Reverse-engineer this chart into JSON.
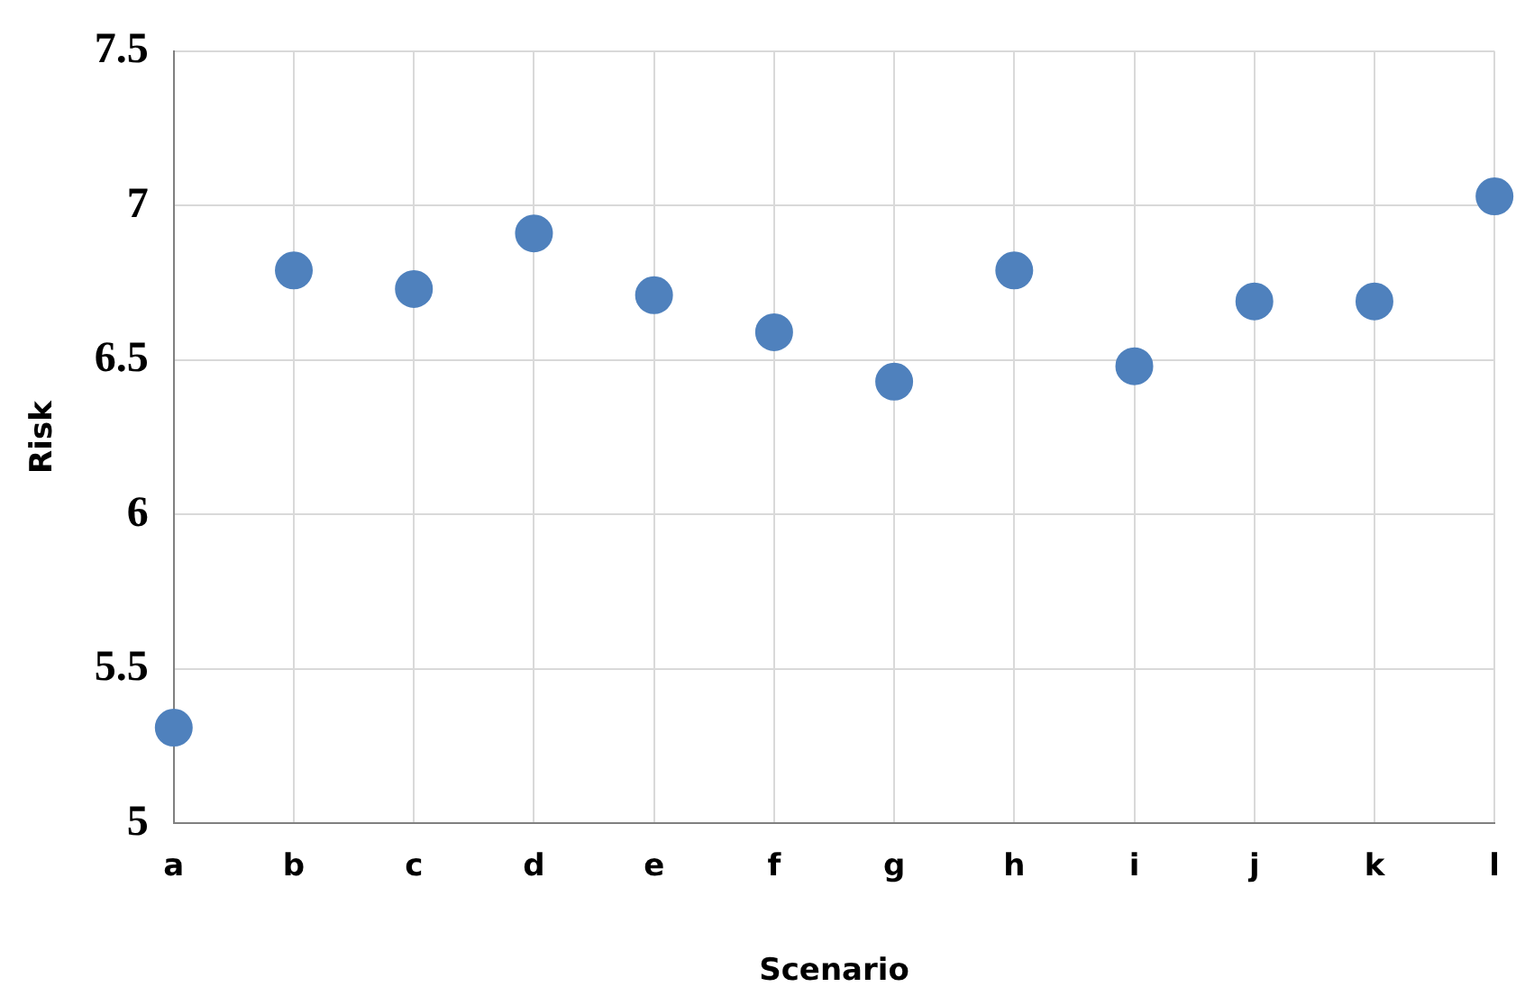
{
  "chart_data": {
    "type": "scatter",
    "xlabel": "Scenario",
    "ylabel": "Risk",
    "categories": [
      "a",
      "b",
      "c",
      "d",
      "e",
      "f",
      "g",
      "h",
      "i",
      "j",
      "k",
      "l"
    ],
    "series": [
      {
        "color": "#4f81bd",
        "values": [
          5.31,
          6.79,
          6.73,
          6.91,
          6.71,
          6.59,
          6.43,
          6.79,
          6.48,
          6.69,
          6.69,
          7.03
        ]
      }
    ],
    "ylim": [
      5,
      7.5
    ],
    "yticks": [
      5,
      5.5,
      6,
      6.5,
      7,
      7.5
    ],
    "grid": true,
    "legend": false,
    "marker": "circle"
  }
}
